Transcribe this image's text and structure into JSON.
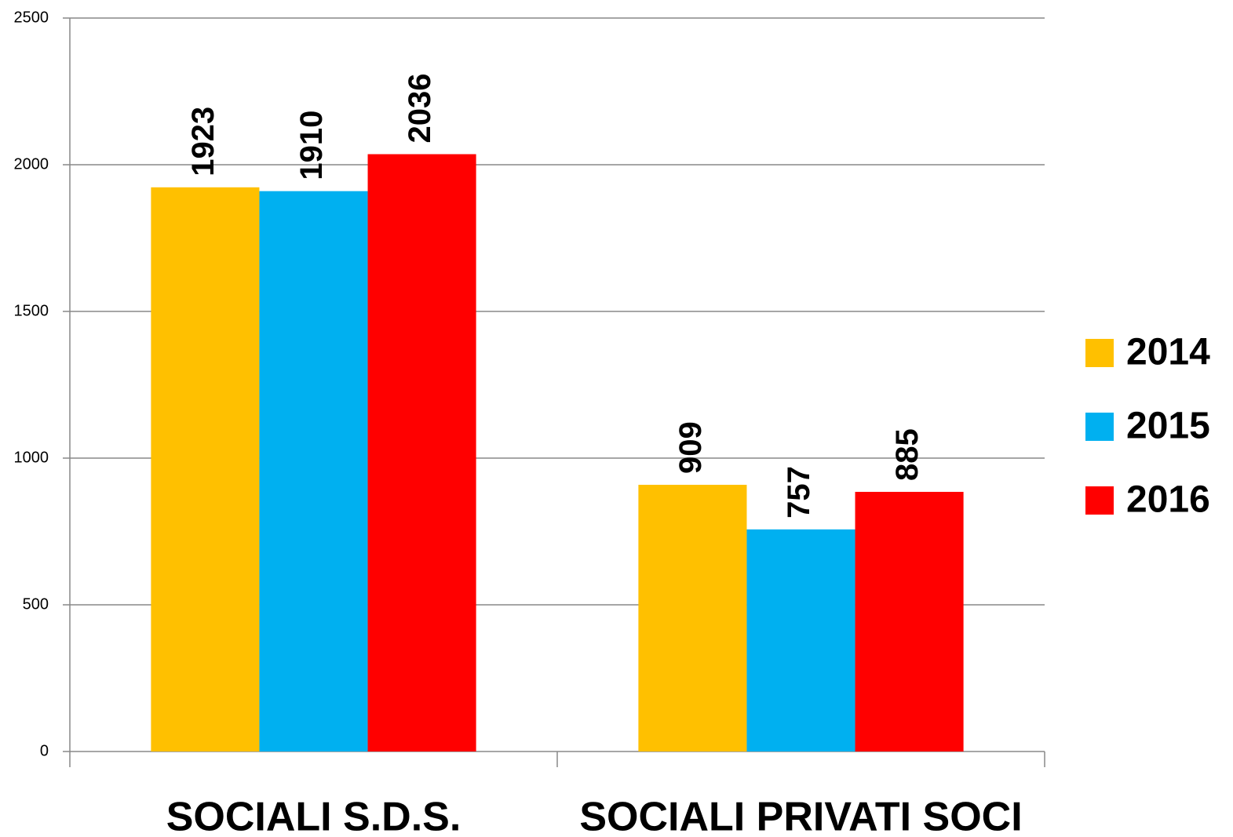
{
  "chart_data": {
    "type": "bar",
    "categories": [
      "SOCIALI S.D.S.",
      "SOCIALI PRIVATI SOCI"
    ],
    "series": [
      {
        "name": "2014",
        "color": "#ffc000",
        "values": [
          1923,
          909
        ]
      },
      {
        "name": "2015",
        "color": "#00b0f0",
        "values": [
          1910,
          757
        ]
      },
      {
        "name": "2016",
        "color": "#ff0000",
        "values": [
          2036,
          885
        ]
      }
    ],
    "ylim": [
      0,
      2500
    ],
    "yticks": [
      0,
      500,
      1000,
      1500,
      2000,
      2500
    ],
    "grid": true,
    "legend": "right"
  }
}
